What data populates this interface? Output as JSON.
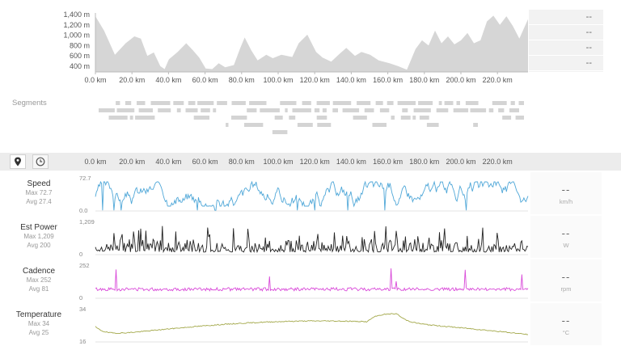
{
  "elevation": {
    "y_ticks": [
      "1,400 m",
      "1,200 m",
      "1,000 m",
      "800 m",
      "600 m",
      "400 m"
    ],
    "x_ticks": [
      "0.0 km",
      "20.0 km",
      "40.0 km",
      "60.0 km",
      "80.0 km",
      "100.0 km",
      "120.0 km",
      "140.0 km",
      "160.0 km",
      "180.0 km",
      "200.0 km",
      "220.0 km"
    ],
    "side_values": [
      "--",
      "--",
      "--",
      "--"
    ],
    "fill_color": "#d6d6d6"
  },
  "segments": {
    "label": "Segments",
    "color": "#d4d4d4"
  },
  "toolbar": {
    "map_icon": "map-pin-icon",
    "time_icon": "clock-icon"
  },
  "axis_ticks": [
    "0.0 km",
    "20.0 km",
    "40.0 km",
    "60.0 km",
    "80.0 km",
    "100.0 km",
    "120.0 km",
    "140.0 km",
    "160.0 km",
    "180.0 km",
    "200.0 km",
    "220.0 km"
  ],
  "metrics": [
    {
      "name": "Speed",
      "max_label": "Max 72.7",
      "avg_label": "Avg 27.4",
      "axis_max": "72.7",
      "axis_min": "0.0",
      "value": "--",
      "unit": "km/h",
      "color": "#4fa7d8"
    },
    {
      "name": "Est Power",
      "max_label": "Max 1,209",
      "avg_label": "Avg 200",
      "axis_max": "1,209",
      "axis_min": "0",
      "value": "--",
      "unit": "W",
      "color": "#222222"
    },
    {
      "name": "Cadence",
      "max_label": "Max 252",
      "avg_label": "Avg 81",
      "axis_max": "252",
      "axis_min": "0",
      "value": "--",
      "unit": "rpm",
      "color": "#d94ad9"
    },
    {
      "name": "Temperature",
      "max_label": "Max 34",
      "avg_label": "Avg 25",
      "axis_max": "34",
      "axis_min": "16",
      "value": "--",
      "unit": "°C",
      "color": "#a3a84a"
    }
  ]
}
